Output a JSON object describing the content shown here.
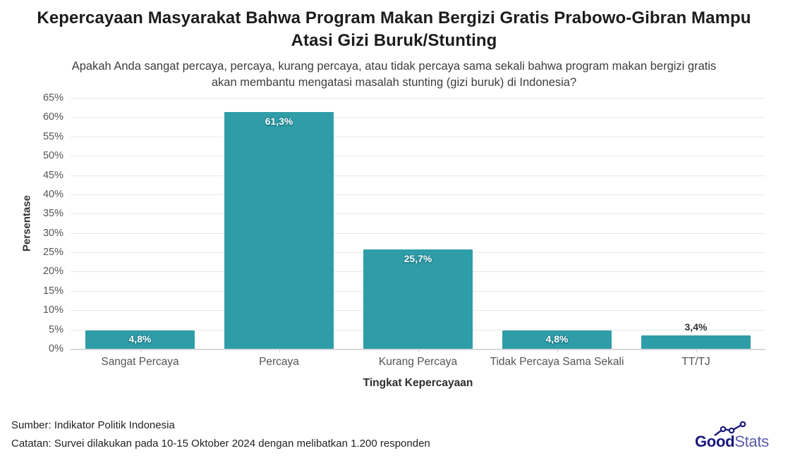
{
  "header": {
    "title": "Kepercayaan Masyarakat Bahwa Program Makan Bergizi Gratis Prabowo-Gibran Mampu Atasi Gizi Buruk/Stunting",
    "subtitle": "Apakah Anda sangat percaya, percaya, kurang percaya, atau tidak percaya sama sekali bahwa program makan bergizi gratis akan membantu mengatasi masalah stunting (gizi buruk) di Indonesia?"
  },
  "chart_data": {
    "type": "bar",
    "categories": [
      "Sangat Percaya",
      "Percaya",
      "Kurang Percaya",
      "Tidak Percaya Sama Sekali",
      "TT/TJ"
    ],
    "values": [
      4.8,
      61.3,
      25.7,
      4.8,
      3.4
    ],
    "value_labels": [
      "4,8%",
      "61,3%",
      "25,7%",
      "4,8%",
      "3,4%"
    ],
    "title": "Kepercayaan Masyarakat Bahwa Program Makan Bergizi Gratis Prabowo-Gibran Mampu Atasi Gizi Buruk/Stunting",
    "xlabel": "Tingkat Kepercayaan",
    "ylabel": "Persentase",
    "ylim": [
      0,
      65
    ],
    "ytick_step": 5,
    "ytick_labels": [
      "0%",
      "5%",
      "10%",
      "15%",
      "20%",
      "25%",
      "30%",
      "35%",
      "40%",
      "45%",
      "50%",
      "55%",
      "60%",
      "65%"
    ],
    "grid": true,
    "legend": "none",
    "bar_color": "#2F9DA8",
    "label_inside_color": "#ffffff",
    "label_outside_color": "#333333"
  },
  "footer": {
    "source": "Sumber: Indikator Politik Indonesia",
    "note": "Catatan: Survei dilakukan pada 10-15 Oktober 2024 dengan melibatkan 1.200 responden"
  },
  "logo": {
    "bold": "Good",
    "light": "Stats",
    "bold_color": "#17177c",
    "light_color": "#5c5cab"
  }
}
